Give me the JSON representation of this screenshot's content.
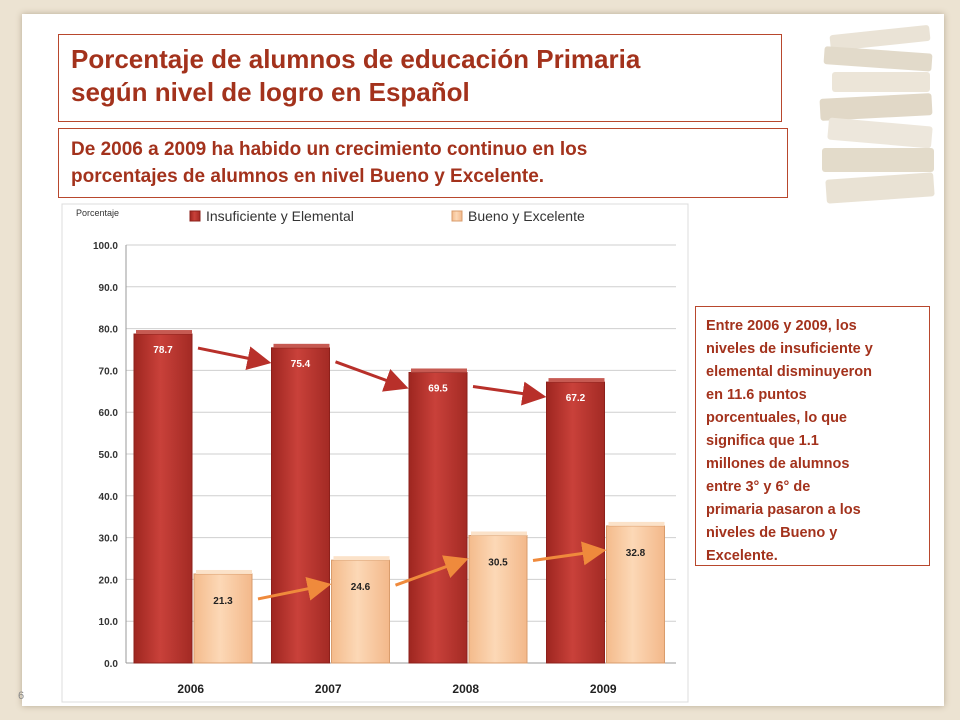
{
  "slide": {
    "title": "Porcentaje de alumnos de educación Primaria\nsegún nivel de logro en Español",
    "subtitle": "De 2006 a 2009 ha habido un crecimiento continuo en los\nporcentajes de alumnos en nivel Bueno y Excelente.",
    "note": "Entre 2006 y 2009,  los\nniveles de insuficiente y\nelemental disminuyeron\nen 11.6 puntos\nporcentuales, lo que\nsignifica que 1.1\nmillones de alumnos\nentre 3° y 6° de\nprimaria pasaron a los\nniveles de Bueno y\nExcelente.",
    "page_number": "6"
  },
  "colors": {
    "accent": "#a3321c",
    "series_1": "#b8302a",
    "series_2": "#f8c9a0",
    "arrow_1": "#b8302a",
    "arrow_2": "#ef8a3c"
  },
  "chart_data": {
    "type": "bar",
    "ylabel": "Porcentaje",
    "categories": [
      "2006",
      "2007",
      "2008",
      "2009"
    ],
    "series": [
      {
        "name": "Insuficiente y Elemental",
        "values": [
          78.7,
          75.4,
          69.5,
          67.2
        ]
      },
      {
        "name": "Bueno y Excelente",
        "values": [
          21.3,
          24.6,
          30.5,
          32.8
        ]
      }
    ],
    "ylim": [
      0,
      100
    ],
    "yticks": [
      "0.0",
      "10.0",
      "20.0",
      "30.0",
      "40.0",
      "50.0",
      "60.0",
      "70.0",
      "80.0",
      "90.0",
      "100.0"
    ],
    "grid": true,
    "legend_position": "top",
    "trend_arrows": true
  }
}
